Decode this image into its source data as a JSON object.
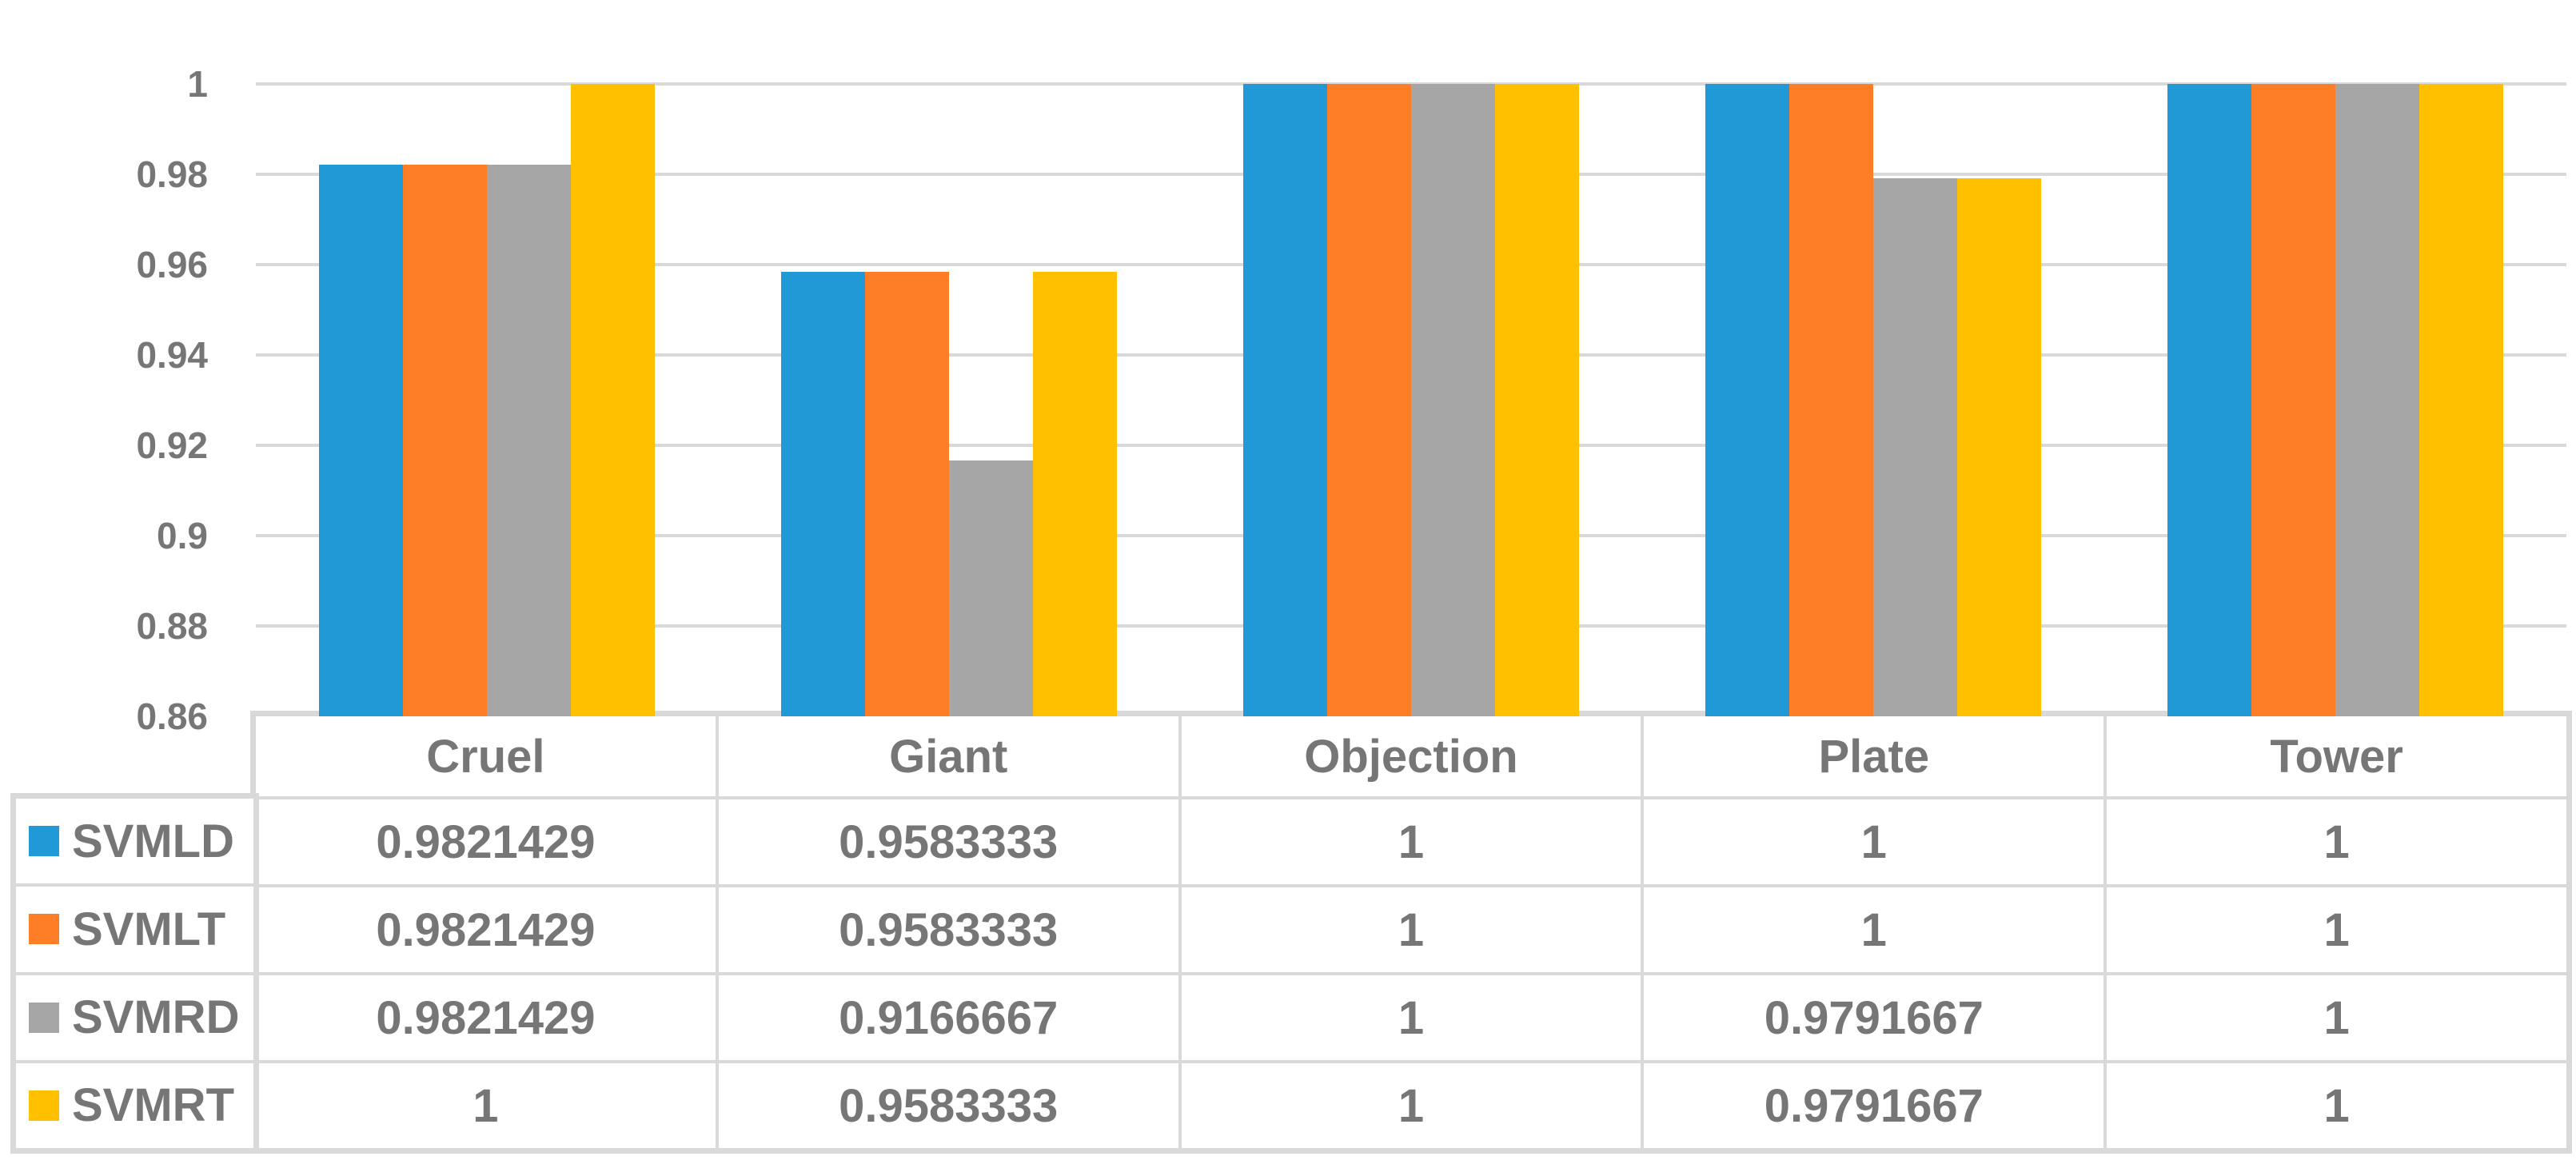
{
  "chart_data": {
    "type": "bar",
    "title": "",
    "xlabel": "",
    "ylabel": "",
    "categories": [
      "Cruel",
      "Giant",
      "Objection",
      "Plate",
      "Tower"
    ],
    "series": [
      {
        "name": "SVMLD",
        "color": "#2199D6",
        "values": [
          0.9821429,
          0.9583333,
          1,
          1,
          1
        ]
      },
      {
        "name": "SVMLT",
        "color": "#FD7E27",
        "values": [
          0.9821429,
          0.9583333,
          1,
          1,
          1
        ]
      },
      {
        "name": "SVMRD",
        "color": "#A6A6A6",
        "values": [
          0.9821429,
          0.9166667,
          1,
          0.9791667,
          1
        ]
      },
      {
        "name": "SVMRT",
        "color": "#FFC000",
        "values": [
          1,
          0.9583333,
          1,
          0.9791667,
          1
        ]
      }
    ],
    "ylim": [
      0.86,
      1
    ],
    "ytick_step": 0.02,
    "yticks": [
      "1",
      "0.98",
      "0.96",
      "0.94",
      "0.92",
      "0.9",
      "0.88",
      "0.86"
    ],
    "grid": true,
    "grid_color": "#D9D9D9",
    "text_color": "#767676",
    "background_color": "#FFFFFF",
    "legend_position": "table-left",
    "legend_entries": [
      "SVMLD",
      "SVMLT",
      "SVMRD",
      "SVMRT"
    ]
  }
}
